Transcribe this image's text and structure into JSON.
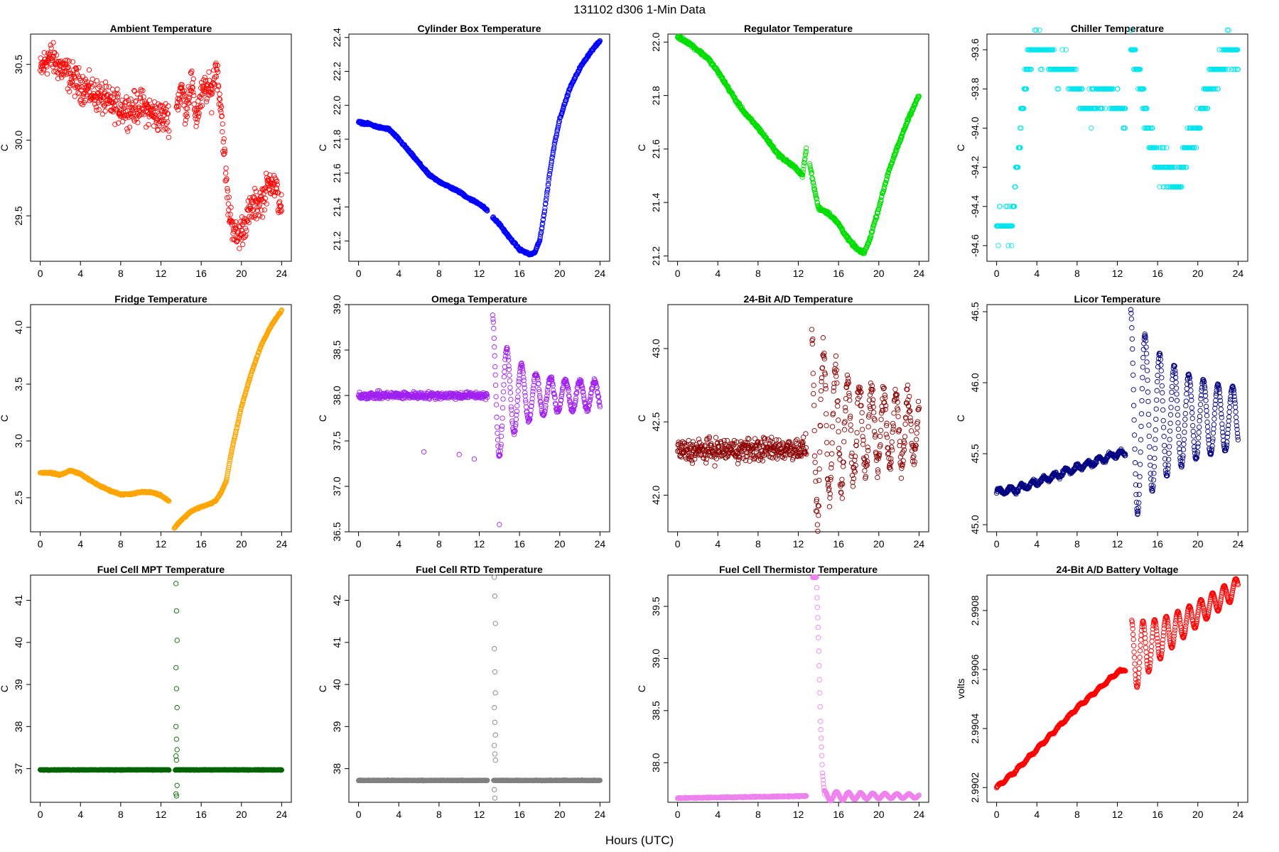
{
  "figure": {
    "title": "131102   d306   1-Min Data",
    "xlabel": "Hours (UTC)"
  },
  "chart_data": [
    {
      "type": "scatter",
      "id": "ambient",
      "title": "Ambient Temperature",
      "ylabel": "C",
      "color": "#ff0000",
      "xlim": [
        0,
        24
      ],
      "ylim": [
        29.2,
        30.7
      ],
      "xticks": [
        0,
        4,
        8,
        12,
        16,
        20,
        24
      ],
      "yticks": [
        29.5,
        30.0,
        30.5
      ],
      "decimals": 1,
      "gap": [
        12.8,
        13.5
      ],
      "series": [
        [
          0,
          30.45
        ],
        [
          0.5,
          30.52
        ],
        [
          1,
          30.55
        ],
        [
          2,
          30.48
        ],
        [
          3,
          30.42
        ],
        [
          4,
          30.36
        ],
        [
          5,
          30.32
        ],
        [
          6,
          30.28
        ],
        [
          7,
          30.24
        ],
        [
          8,
          30.21
        ],
        [
          9,
          30.2
        ],
        [
          10,
          30.23
        ],
        [
          11,
          30.18
        ],
        [
          12,
          30.15
        ],
        [
          12.8,
          30.15
        ],
        [
          13.5,
          30.2
        ],
        [
          14,
          30.35
        ],
        [
          14.5,
          30.2
        ],
        [
          15,
          30.4
        ],
        [
          15.5,
          30.15
        ],
        [
          16,
          30.28
        ],
        [
          16.5,
          30.35
        ],
        [
          17,
          30.3
        ],
        [
          17.5,
          30.5
        ],
        [
          18,
          30.2
        ],
        [
          18.3,
          29.9
        ],
        [
          18.7,
          29.55
        ],
        [
          19.5,
          29.35
        ],
        [
          20,
          29.4
        ],
        [
          21,
          29.55
        ],
        [
          22,
          29.6
        ],
        [
          23,
          29.75
        ],
        [
          24,
          29.55
        ]
      ],
      "noise": 0.08
    },
    {
      "type": "scatter",
      "id": "cylbox",
      "title": "Cylinder Box Temperature",
      "ylabel": "C",
      "color": "#0000ff",
      "xlim": [
        0,
        24
      ],
      "ylim": [
        21.08,
        22.42
      ],
      "xticks": [
        0,
        4,
        8,
        12,
        16,
        20,
        24
      ],
      "yticks": [
        21.2,
        21.4,
        21.6,
        21.8,
        22.0,
        22.2,
        22.4
      ],
      "decimals": 1,
      "gap": [
        12.8,
        13.3
      ],
      "series": [
        [
          0,
          21.9
        ],
        [
          1,
          21.89
        ],
        [
          2,
          21.87
        ],
        [
          3,
          21.86
        ],
        [
          4,
          21.8
        ],
        [
          5,
          21.73
        ],
        [
          6,
          21.66
        ],
        [
          7,
          21.59
        ],
        [
          8,
          21.55
        ],
        [
          9,
          21.52
        ],
        [
          10,
          21.49
        ],
        [
          11,
          21.45
        ],
        [
          12,
          21.42
        ],
        [
          12.8,
          21.38
        ],
        [
          13.3,
          21.34
        ],
        [
          14,
          21.3
        ],
        [
          15,
          21.22
        ],
        [
          16,
          21.15
        ],
        [
          17,
          21.12
        ],
        [
          17.5,
          21.13
        ],
        [
          18,
          21.2
        ],
        [
          18.5,
          21.38
        ],
        [
          19,
          21.6
        ],
        [
          19.5,
          21.78
        ],
        [
          20,
          21.92
        ],
        [
          21,
          22.1
        ],
        [
          22,
          22.22
        ],
        [
          23,
          22.31
        ],
        [
          24,
          22.38
        ]
      ],
      "noise": 0.005
    },
    {
      "type": "scatter",
      "id": "regulator",
      "title": "Regulator Temperature",
      "ylabel": "C",
      "color": "#00dd00",
      "xlim": [
        0,
        24
      ],
      "ylim": [
        21.18,
        22.03
      ],
      "xticks": [
        0,
        4,
        8,
        12,
        16,
        20,
        24
      ],
      "yticks": [
        21.2,
        21.4,
        21.6,
        21.8,
        22.0
      ],
      "decimals": 1,
      "gap": [
        12.8,
        13.1
      ],
      "series": [
        [
          0,
          22.02
        ],
        [
          1,
          22.0
        ],
        [
          2,
          21.97
        ],
        [
          3,
          21.94
        ],
        [
          4,
          21.89
        ],
        [
          5,
          21.83
        ],
        [
          6,
          21.77
        ],
        [
          7,
          21.72
        ],
        [
          8,
          21.68
        ],
        [
          9,
          21.63
        ],
        [
          10,
          21.58
        ],
        [
          11,
          21.55
        ],
        [
          12,
          21.52
        ],
        [
          12.4,
          21.5
        ],
        [
          12.8,
          21.6
        ],
        [
          13.1,
          21.55
        ],
        [
          13.6,
          21.45
        ],
        [
          14,
          21.38
        ],
        [
          15,
          21.36
        ],
        [
          16,
          21.32
        ],
        [
          17,
          21.26
        ],
        [
          18,
          21.22
        ],
        [
          18.5,
          21.21
        ],
        [
          19,
          21.25
        ],
        [
          20,
          21.38
        ],
        [
          21,
          21.52
        ],
        [
          22,
          21.62
        ],
        [
          23,
          21.72
        ],
        [
          24,
          21.8
        ]
      ],
      "noise": 0.005
    },
    {
      "type": "scatter",
      "id": "chiller",
      "title": "Chiller Temperature",
      "ylabel": "C",
      "color": "#00e5ee",
      "xlim": [
        0,
        24
      ],
      "ylim": [
        -94.68,
        -93.52
      ],
      "xticks": [
        0,
        4,
        8,
        12,
        16,
        20,
        24
      ],
      "yticks": [
        -94.6,
        -94.4,
        -94.2,
        -94.0,
        -93.8,
        -93.6
      ],
      "decimals": 1,
      "quantize": 0.1,
      "gap": [
        12.8,
        13.3
      ],
      "series": [
        [
          0,
          -94.5
        ],
        [
          1.5,
          -94.5
        ],
        [
          2,
          -94.2
        ],
        [
          2.5,
          -93.9
        ],
        [
          3,
          -93.7
        ],
        [
          3.5,
          -93.6
        ],
        [
          5,
          -93.6
        ],
        [
          6,
          -93.7
        ],
        [
          7,
          -93.7
        ],
        [
          8,
          -93.8
        ],
        [
          9,
          -93.9
        ],
        [
          10,
          -93.85
        ],
        [
          11,
          -93.8
        ],
        [
          12,
          -93.9
        ],
        [
          12.8,
          -93.95
        ],
        [
          13.3,
          -93.55
        ],
        [
          14,
          -93.7
        ],
        [
          14.5,
          -93.85
        ],
        [
          15,
          -94.0
        ],
        [
          15.5,
          -94.1
        ],
        [
          16,
          -94.2
        ],
        [
          17,
          -94.2
        ],
        [
          18,
          -94.3
        ],
        [
          19,
          -94.1
        ],
        [
          20,
          -94.0
        ],
        [
          21,
          -93.8
        ],
        [
          22,
          -93.7
        ],
        [
          23,
          -93.6
        ],
        [
          24,
          -93.6
        ]
      ],
      "noise": 0.05
    },
    {
      "type": "scatter",
      "id": "fridge",
      "title": "Fridge Temperature",
      "ylabel": "C",
      "color": "#ffa500",
      "xlim": [
        0,
        24
      ],
      "ylim": [
        2.2,
        4.2
      ],
      "xticks": [
        0,
        4,
        8,
        12,
        16,
        20,
        24
      ],
      "yticks": [
        2.5,
        3.0,
        3.5,
        4.0
      ],
      "decimals": 1,
      "gap": [
        12.8,
        13.3
      ],
      "series": [
        [
          0,
          2.72
        ],
        [
          1,
          2.72
        ],
        [
          2,
          2.7
        ],
        [
          3,
          2.74
        ],
        [
          4,
          2.71
        ],
        [
          5,
          2.65
        ],
        [
          6,
          2.6
        ],
        [
          7,
          2.56
        ],
        [
          8,
          2.53
        ],
        [
          9,
          2.53
        ],
        [
          10,
          2.55
        ],
        [
          11,
          2.55
        ],
        [
          12,
          2.52
        ],
        [
          12.8,
          2.47
        ],
        [
          13.3,
          2.23
        ],
        [
          14,
          2.3
        ],
        [
          15,
          2.38
        ],
        [
          16,
          2.42
        ],
        [
          17,
          2.45
        ],
        [
          17.5,
          2.48
        ],
        [
          18,
          2.55
        ],
        [
          18.5,
          2.65
        ],
        [
          19,
          2.9
        ],
        [
          20,
          3.3
        ],
        [
          21,
          3.6
        ],
        [
          22,
          3.85
        ],
        [
          23,
          4.02
        ],
        [
          24,
          4.15
        ]
      ],
      "noise": 0.005
    },
    {
      "type": "scatter",
      "id": "omega",
      "title": "Omega Temperature",
      "ylabel": "C",
      "color": "#a020f0",
      "xlim": [
        0,
        24
      ],
      "ylim": [
        36.5,
        39.0
      ],
      "xticks": [
        0,
        4,
        8,
        12,
        16,
        20,
        24
      ],
      "yticks": [
        36.5,
        37.0,
        37.5,
        38.0,
        38.5,
        39.0
      ],
      "decimals": 1,
      "gap": [
        12.8,
        13.3
      ],
      "series": [
        [
          0,
          38.0
        ],
        [
          12.8,
          38.0
        ]
      ],
      "noise": 0.03,
      "osc": {
        "start": 13.3,
        "end": 24,
        "center": 38.0,
        "amp": 0.9,
        "decay": 0.22,
        "period": 1.45,
        "ampEnd": 0.15
      },
      "outliers": [
        [
          6.5,
          37.38
        ],
        [
          10,
          37.35
        ],
        [
          11.5,
          37.3
        ],
        [
          14,
          36.58
        ]
      ]
    },
    {
      "type": "scatter",
      "id": "ad24temp",
      "title": "24-Bit A/D Temperature",
      "ylabel": "C",
      "color": "#8b0000",
      "xlim": [
        0,
        24
      ],
      "ylim": [
        41.75,
        43.3
      ],
      "xticks": [
        0,
        4,
        8,
        12,
        16,
        20,
        24
      ],
      "yticks": [
        42.0,
        42.5,
        43.0
      ],
      "decimals": 1,
      "gap": [
        12.8,
        13.3
      ],
      "series": [
        [
          0,
          42.3
        ],
        [
          12.8,
          42.32
        ]
      ],
      "noise": 0.06,
      "osc": {
        "start": 13.3,
        "end": 24,
        "center": 42.45,
        "amp": 0.7,
        "decay": 0.15,
        "period": 1.2,
        "ampEnd": 0.2
      },
      "noiseOsc": 0.12
    },
    {
      "type": "scatter",
      "id": "licor",
      "title": "Licor Temperature",
      "ylabel": "C",
      "color": "#000080",
      "xlim": [
        0,
        24
      ],
      "ylim": [
        44.95,
        46.55
      ],
      "xticks": [
        0,
        4,
        8,
        12,
        16,
        20,
        24
      ],
      "yticks": [
        45.0,
        45.5,
        46.0,
        46.5
      ],
      "decimals": 1,
      "gap": [
        12.8,
        13.3
      ],
      "series": [
        [
          0,
          45.23
        ],
        [
          2,
          45.25
        ],
        [
          4,
          45.3
        ],
        [
          6,
          45.35
        ],
        [
          8,
          45.4
        ],
        [
          10,
          45.45
        ],
        [
          12,
          45.5
        ],
        [
          12.8,
          45.5
        ]
      ],
      "noise": 0.01,
      "wobble": {
        "amp": 0.02,
        "period": 1.1
      },
      "osc": {
        "start": 13.3,
        "end": 24,
        "center": 45.75,
        "amp": 0.78,
        "decay": 0.12,
        "period": 1.45,
        "ampEnd": 0.18
      }
    },
    {
      "type": "scatter",
      "id": "fcmpt",
      "title": "Fuel Cell MPT Temperature",
      "ylabel": "C",
      "color": "#006400",
      "xlim": [
        0,
        24
      ],
      "ylim": [
        36.2,
        41.6
      ],
      "xticks": [
        0,
        4,
        8,
        12,
        16,
        20,
        24
      ],
      "yticks": [
        37,
        38,
        39,
        40,
        41
      ],
      "decimals": 0,
      "gap": [
        12.8,
        13.4
      ],
      "series": [
        [
          0,
          36.97
        ],
        [
          12.8,
          36.97
        ],
        [
          13.4,
          36.97
        ],
        [
          24,
          36.97
        ]
      ],
      "noise": 0.005,
      "spike": {
        "x": 13.5,
        "values": [
          41.4,
          40.75,
          40.05,
          39.4,
          38.9,
          38.45,
          38.0,
          37.7,
          37.45,
          37.3,
          37.2,
          36.6,
          36.4,
          36.35
        ]
      }
    },
    {
      "type": "scatter",
      "id": "fcrtd",
      "title": "Fuel Cell RTD Temperature",
      "ylabel": "C",
      "color": "#808080",
      "xlim": [
        0,
        24
      ],
      "ylim": [
        37.2,
        42.6
      ],
      "xticks": [
        0,
        4,
        8,
        12,
        16,
        20,
        24
      ],
      "yticks": [
        38,
        39,
        40,
        41,
        42
      ],
      "decimals": 0,
      "gap": [
        12.8,
        13.4
      ],
      "series": [
        [
          0,
          37.72
        ],
        [
          12.8,
          37.72
        ],
        [
          13.4,
          37.72
        ],
        [
          24,
          37.72
        ]
      ],
      "noise": 0.005,
      "spike": {
        "x": 13.5,
        "values": [
          42.55,
          42.1,
          41.45,
          40.85,
          40.3,
          39.8,
          39.45,
          39.1,
          38.8,
          38.55,
          38.35,
          38.2,
          37.5,
          37.3
        ]
      }
    },
    {
      "type": "scatter",
      "id": "fctherm",
      "title": "Fuel Cell Thermistor Temperature",
      "ylabel": "C",
      "color": "#ee82ee",
      "xlim": [
        0,
        24
      ],
      "ylim": [
        37.62,
        39.8
      ],
      "xticks": [
        0,
        4,
        8,
        12,
        16,
        20,
        24
      ],
      "yticks": [
        38.0,
        38.5,
        39.0,
        39.5
      ],
      "decimals": 1,
      "gap": [
        12.8,
        13.4
      ],
      "series": [
        [
          0,
          37.66
        ],
        [
          12.8,
          37.68
        ],
        [
          13.4,
          39.78
        ],
        [
          13.8,
          39.78
        ],
        [
          14,
          39.2
        ],
        [
          14.2,
          38.4
        ],
        [
          14.4,
          37.9
        ],
        [
          14.6,
          37.7
        ]
      ],
      "noise": 0.004,
      "osc": {
        "start": 14.6,
        "end": 24,
        "center": 37.68,
        "amp": 0.05,
        "decay": 0.1,
        "period": 1.2,
        "ampEnd": 0.015
      }
    },
    {
      "type": "scatter",
      "id": "adbatt",
      "title": "24-Bit A/D Battery Voltage",
      "ylabel": "volts",
      "color": "#ff0000",
      "xlim": [
        0,
        24
      ],
      "ylim": [
        2.99015,
        2.99092
      ],
      "xticks": [
        0,
        4,
        8,
        12,
        16,
        20,
        24
      ],
      "yticks": [
        2.9902,
        2.9904,
        2.9906,
        2.9908
      ],
      "decimals": 4,
      "gap": [
        12.8,
        13.4
      ],
      "series": [
        [
          0,
          2.9902
        ],
        [
          2,
          2.99026
        ],
        [
          4,
          2.99033
        ],
        [
          6,
          2.9904
        ],
        [
          8,
          2.99047
        ],
        [
          10,
          2.99053
        ],
        [
          12,
          2.99059
        ],
        [
          12.8,
          2.9906
        ]
      ],
      "noise": 2e-06,
      "wobble": {
        "amp": 4e-06,
        "period": 1.0
      },
      "trend": {
        "start": 13.4,
        "end": 24,
        "from": 2.99064,
        "to": 2.99088
      },
      "osc": {
        "start": 13.4,
        "end": 24,
        "center": 0,
        "amp": 0.00013,
        "decay": 0.15,
        "period": 1.15,
        "ampEnd": 3e-05
      }
    }
  ]
}
